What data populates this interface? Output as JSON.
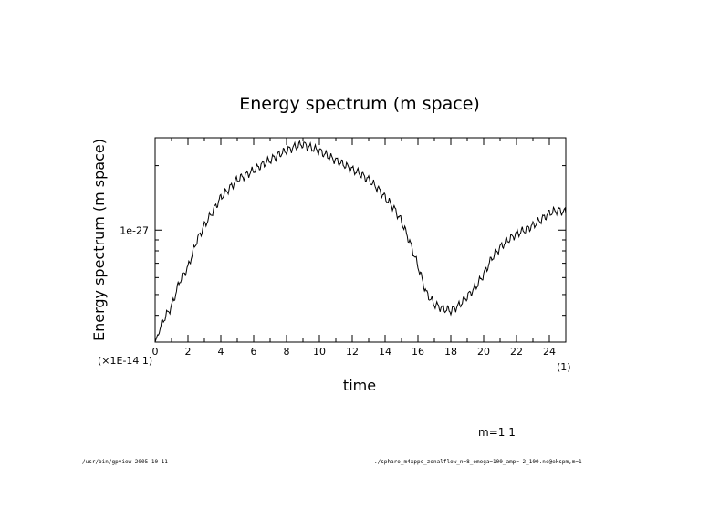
{
  "chart_data": {
    "type": "line",
    "title": "Energy spectrum (m space)",
    "xlabel": "time",
    "ylabel": "Energy spectrum (m space)",
    "xlim": [
      0,
      25
    ],
    "x_ticks": [
      0,
      2,
      4,
      6,
      8,
      10,
      12,
      14,
      16,
      18,
      20,
      22,
      24
    ],
    "x_tick_labels": [
      "0",
      "2",
      "4",
      "6",
      "8",
      "10",
      "12",
      "14",
      "16",
      "18",
      "20",
      "22",
      "24"
    ],
    "x_scale_label": "(1)",
    "y_scale": "log",
    "ylim": [
      3e-28,
      2.7e-27
    ],
    "y_labeled_tick": {
      "value": 1e-27,
      "label": "1e-27"
    },
    "y_scale_label": "(×1E-14 1)",
    "series": [
      {
        "name": "m=1 1",
        "x": [
          0,
          0.5,
          1,
          1.5,
          2,
          2.5,
          3,
          3.5,
          4,
          4.5,
          5,
          5.5,
          6,
          6.5,
          7,
          7.5,
          8,
          8.5,
          9,
          9.5,
          10,
          10.5,
          11,
          11.5,
          12,
          12.5,
          13,
          13.5,
          14,
          14.5,
          15,
          15.5,
          16,
          16.5,
          17,
          17.5,
          18,
          18.5,
          19,
          19.5,
          20,
          20.5,
          21,
          21.5,
          22,
          22.5,
          23,
          23.5,
          24,
          24.5,
          25
        ],
        "y": [
          3e-28,
          3.8e-28,
          4.4e-28,
          5.8e-28,
          6.7e-28,
          8.8e-28,
          1.05e-27,
          1.22e-27,
          1.42e-27,
          1.56e-27,
          1.72e-27,
          1.8e-27,
          1.9e-27,
          2.02e-27,
          2.12e-27,
          2.25e-27,
          2.35e-27,
          2.45e-27,
          2.52e-27,
          2.42e-27,
          2.35e-27,
          2.22e-27,
          2.12e-27,
          2.02e-27,
          1.92e-27,
          1.83e-27,
          1.72e-27,
          1.58e-27,
          1.42e-27,
          1.28e-27,
          1.1e-27,
          8.8e-28,
          6.8e-28,
          5.1e-28,
          4.5e-28,
          4.3e-28,
          4.2e-28,
          4.45e-28,
          4.9e-28,
          5.4e-28,
          6.2e-28,
          7.4e-28,
          8.3e-28,
          9e-28,
          9.6e-28,
          1e-27,
          1.05e-27,
          1.12e-27,
          1.2e-27,
          1.24e-27,
          1.21e-27
        ]
      }
    ]
  },
  "legend": {
    "label": "m=1 1"
  },
  "footer": {
    "left": "/usr/bin/gpview   2005-10-11",
    "right": "./spharo_m4xpps_zonalflow_n=8_omega=100_amp=-2_100.nc@ekspm,m=1"
  }
}
